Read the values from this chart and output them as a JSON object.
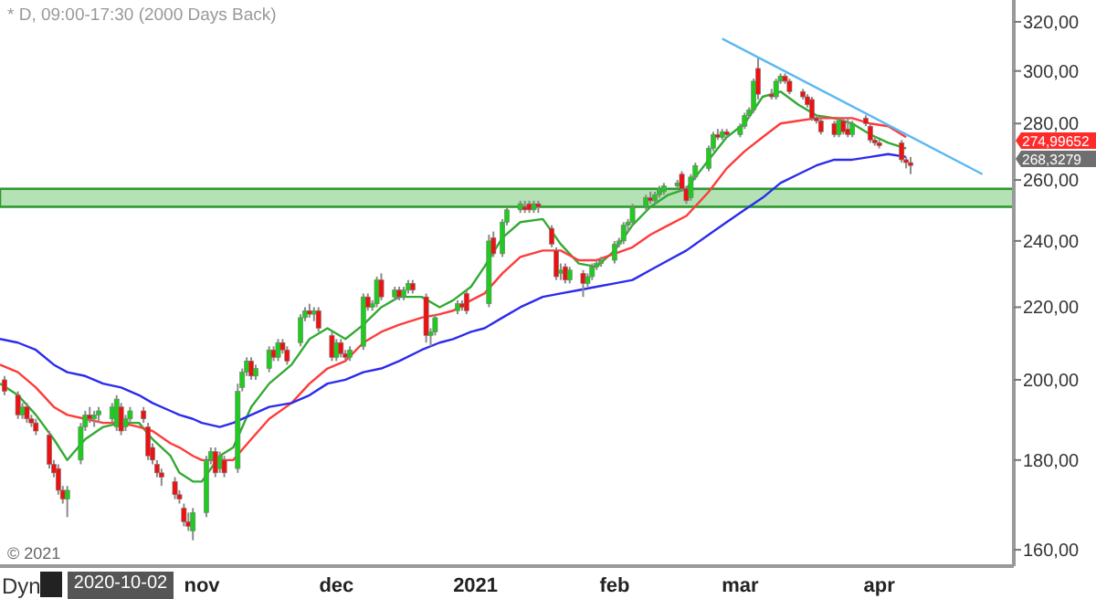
{
  "chart_data": {
    "type": "candlestick",
    "title": "* D, 09:00-17:30 (2000 Days Back)",
    "x": [
      "2020-09-18",
      "2020-09-21",
      "2020-09-22",
      "2020-09-23",
      "2020-09-24",
      "2020-09-25",
      "2020-09-28",
      "2020-09-29",
      "2020-09-30",
      "2020-10-01",
      "2020-10-02",
      "2020-10-05",
      "2020-10-06",
      "2020-10-07",
      "2020-10-08",
      "2020-10-09",
      "2020-10-12",
      "2020-10-13",
      "2020-10-14",
      "2020-10-15",
      "2020-10-16",
      "2020-10-19",
      "2020-10-20",
      "2020-10-21",
      "2020-10-22",
      "2020-10-23",
      "2020-10-26",
      "2020-10-27",
      "2020-10-28",
      "2020-10-29",
      "2020-10-30",
      "2020-11-02",
      "2020-11-03",
      "2020-11-04",
      "2020-11-05",
      "2020-11-06",
      "2020-11-09",
      "2020-11-10",
      "2020-11-11",
      "2020-11-12",
      "2020-11-13",
      "2020-11-16",
      "2020-11-17",
      "2020-11-18",
      "2020-11-19",
      "2020-11-20",
      "2020-11-23",
      "2020-11-24",
      "2020-11-25",
      "2020-11-26",
      "2020-11-27",
      "2020-11-30",
      "2020-12-01",
      "2020-12-02",
      "2020-12-03",
      "2020-12-04",
      "2020-12-07",
      "2020-12-08",
      "2020-12-09",
      "2020-12-10",
      "2020-12-11",
      "2020-12-14",
      "2020-12-15",
      "2020-12-16",
      "2020-12-17",
      "2020-12-18",
      "2020-12-21",
      "2020-12-22",
      "2020-12-23",
      "2020-12-28",
      "2020-12-29",
      "2020-12-30",
      "2021-01-04",
      "2021-01-05",
      "2021-01-07",
      "2021-01-08",
      "2021-01-11",
      "2021-01-12",
      "2021-01-13",
      "2021-01-14",
      "2021-01-15",
      "2021-01-18",
      "2021-01-19",
      "2021-01-20",
      "2021-01-21",
      "2021-01-22",
      "2021-01-25",
      "2021-01-26",
      "2021-01-27",
      "2021-01-28",
      "2021-01-29",
      "2021-02-01",
      "2021-02-02",
      "2021-02-03",
      "2021-02-04",
      "2021-02-05",
      "2021-02-08",
      "2021-02-09",
      "2021-02-10",
      "2021-02-11",
      "2021-02-12",
      "2021-02-15",
      "2021-02-16",
      "2021-02-17",
      "2021-02-18",
      "2021-02-19",
      "2021-02-22",
      "2021-02-23",
      "2021-02-24",
      "2021-02-25",
      "2021-02-26",
      "2021-03-01",
      "2021-03-02",
      "2021-03-03",
      "2021-03-04",
      "2021-03-05",
      "2021-03-08",
      "2021-03-09",
      "2021-03-10",
      "2021-03-11",
      "2021-03-12",
      "2021-03-15",
      "2021-03-16",
      "2021-03-17",
      "2021-03-18",
      "2021-03-19",
      "2021-03-22",
      "2021-03-23",
      "2021-03-24",
      "2021-03-25",
      "2021-03-26",
      "2021-03-29",
      "2021-03-30",
      "2021-03-31",
      "2021-04-01",
      "2021-04-06",
      "2021-04-07",
      "2021-04-08"
    ],
    "ohlc": [
      [
        200,
        201,
        196,
        197
      ],
      [
        196,
        197,
        190,
        191
      ],
      [
        191,
        194,
        190,
        193
      ],
      [
        193,
        194,
        189,
        190
      ],
      [
        190,
        191,
        188,
        189
      ],
      [
        189,
        190,
        186,
        187
      ],
      [
        186,
        187,
        178,
        179
      ],
      [
        179,
        180,
        176,
        177
      ],
      [
        178,
        179,
        172,
        173
      ],
      [
        173,
        174,
        170,
        171
      ],
      [
        171,
        174,
        167,
        173
      ],
      [
        180,
        189,
        179,
        188
      ],
      [
        188,
        192,
        187,
        191
      ],
      [
        191,
        193,
        189,
        190
      ],
      [
        190,
        192,
        188,
        191
      ],
      [
        191,
        193,
        189,
        192
      ],
      [
        190,
        194,
        189,
        193
      ],
      [
        188,
        196,
        187,
        195
      ],
      [
        193,
        194,
        186,
        187
      ],
      [
        188,
        191,
        187,
        190
      ],
      [
        190,
        193,
        189,
        192
      ],
      [
        192,
        193,
        189,
        190
      ],
      [
        188,
        189,
        180,
        181
      ],
      [
        183,
        184,
        179,
        180
      ],
      [
        179,
        180,
        176,
        177
      ],
      [
        177,
        178,
        174,
        176
      ],
      [
        175,
        176,
        171,
        172
      ],
      [
        172,
        173,
        170,
        171
      ],
      [
        169,
        170,
        165,
        166
      ],
      [
        166,
        168,
        164,
        165
      ],
      [
        164,
        169,
        162,
        168
      ],
      [
        168,
        181,
        167,
        180
      ],
      [
        180,
        183,
        179,
        182
      ],
      [
        182,
        183,
        176,
        177
      ],
      [
        178,
        182,
        177,
        181
      ],
      [
        180,
        181,
        176,
        177
      ],
      [
        178,
        199,
        177,
        197
      ],
      [
        198,
        203,
        197,
        202
      ],
      [
        202,
        206,
        201,
        205
      ],
      [
        205,
        206,
        200,
        201
      ],
      [
        201,
        204,
        200,
        203
      ],
      [
        203,
        209,
        202,
        208
      ],
      [
        208,
        209,
        205,
        206
      ],
      [
        206,
        211,
        205,
        210
      ],
      [
        210,
        211,
        207,
        208
      ],
      [
        208,
        209,
        204,
        205
      ],
      [
        210,
        218,
        209,
        217
      ],
      [
        217,
        220,
        216,
        219
      ],
      [
        219,
        221,
        217,
        218
      ],
      [
        218,
        220,
        216,
        219
      ],
      [
        219,
        220,
        213,
        214
      ],
      [
        212,
        213,
        205,
        206
      ],
      [
        206,
        211,
        205,
        210
      ],
      [
        210,
        211,
        206,
        207
      ],
      [
        207,
        208,
        205,
        206
      ],
      [
        206,
        209,
        205,
        208
      ],
      [
        209,
        224,
        208,
        223
      ],
      [
        223,
        224,
        219,
        220
      ],
      [
        220,
        222,
        219,
        221
      ],
      [
        221,
        229,
        220,
        228
      ],
      [
        228,
        230,
        222,
        223
      ],
      [
        223,
        226,
        222,
        225
      ],
      [
        225,
        226,
        222,
        223
      ],
      [
        223,
        226,
        222,
        225
      ],
      [
        225,
        228,
        224,
        227
      ],
      [
        227,
        228,
        224,
        225
      ],
      [
        223,
        224,
        210,
        212
      ],
      [
        212,
        214,
        209,
        213
      ],
      [
        213,
        218,
        212,
        217
      ],
      [
        219,
        222,
        218,
        221
      ],
      [
        221,
        222,
        219,
        220
      ],
      [
        224,
        225,
        218,
        219
      ],
      [
        221,
        242,
        220,
        240
      ],
      [
        241,
        243,
        235,
        236
      ],
      [
        236,
        247,
        235,
        246
      ],
      [
        246,
        251,
        245,
        250
      ],
      [
        250,
        253,
        249,
        252
      ],
      [
        251,
        253,
        249,
        250
      ],
      [
        252,
        253,
        249,
        250
      ],
      [
        250,
        253,
        249,
        252
      ],
      [
        252,
        253,
        249,
        251
      ],
      [
        244,
        245,
        238,
        239
      ],
      [
        237,
        238,
        228,
        229
      ],
      [
        230,
        233,
        228,
        231
      ],
      [
        232,
        233,
        227,
        228
      ],
      [
        228,
        232,
        227,
        231
      ],
      [
        230,
        231,
        223,
        227
      ],
      [
        227,
        230,
        226,
        229
      ],
      [
        229,
        233,
        228,
        232
      ],
      [
        232,
        234,
        231,
        233
      ],
      [
        233,
        235,
        232,
        234
      ],
      [
        234,
        240,
        233,
        239
      ],
      [
        239,
        241,
        238,
        240
      ],
      [
        240,
        246,
        239,
        245
      ],
      [
        245,
        247,
        243,
        246
      ],
      [
        246,
        252,
        245,
        251
      ],
      [
        251,
        255,
        250,
        254
      ],
      [
        254,
        256,
        252,
        253
      ],
      [
        253,
        256,
        252,
        255
      ],
      [
        255,
        258,
        254,
        257
      ],
      [
        256,
        259,
        255,
        258
      ],
      [
        258,
        260,
        257,
        259
      ],
      [
        262,
        263,
        256,
        257
      ],
      [
        257,
        258,
        252,
        253
      ],
      [
        254,
        262,
        253,
        261
      ],
      [
        261,
        266,
        260,
        265
      ],
      [
        264,
        272,
        263,
        271
      ],
      [
        271,
        277,
        270,
        276
      ],
      [
        276,
        278,
        274,
        275
      ],
      [
        275,
        278,
        274,
        277
      ],
      [
        277,
        278,
        275,
        276
      ],
      [
        276,
        280,
        275,
        279
      ],
      [
        279,
        284,
        278,
        283
      ],
      [
        283,
        286,
        282,
        285
      ],
      [
        285,
        297,
        284,
        296
      ],
      [
        301,
        305,
        289,
        291
      ],
      [
        291,
        293,
        289,
        290
      ],
      [
        290,
        297,
        289,
        296
      ],
      [
        296,
        299,
        295,
        298
      ],
      [
        298,
        299,
        295,
        296
      ],
      [
        296,
        297,
        291,
        292
      ],
      [
        292,
        293,
        289,
        290
      ],
      [
        290,
        291,
        286,
        287
      ],
      [
        289,
        290,
        281,
        282
      ],
      [
        282,
        283,
        280,
        281
      ],
      [
        281,
        282,
        276,
        277
      ],
      [
        280,
        281,
        275,
        276
      ],
      [
        276,
        282,
        275,
        281
      ],
      [
        281,
        282,
        276,
        277
      ],
      [
        278,
        282,
        275,
        276
      ],
      [
        276,
        281,
        275,
        280
      ],
      [
        282,
        283,
        279,
        280
      ],
      [
        279,
        280,
        273,
        274
      ],
      [
        274,
        275,
        272,
        273
      ],
      [
        273,
        274,
        271,
        272
      ],
      [
        273,
        274,
        266,
        267
      ],
      [
        267,
        268,
        264,
        266
      ],
      [
        266,
        268,
        262,
        265
      ]
    ],
    "series": [
      {
        "type": "line",
        "color": "#33aa33",
        "x": [
          "2020-09-17",
          "2020-09-21",
          "2020-09-25",
          "2020-09-29",
          "2020-10-02",
          "2020-10-06",
          "2020-10-10",
          "2020-10-14",
          "2020-10-18",
          "2020-10-21",
          "2020-10-25",
          "2020-10-27",
          "2020-10-30",
          "2020-11-01",
          "2020-11-05",
          "2020-11-08",
          "2020-11-12",
          "2020-11-16",
          "2020-11-21",
          "2020-11-25",
          "2020-11-29",
          "2020-12-03",
          "2020-12-07",
          "2020-12-11",
          "2020-12-15",
          "2020-12-20",
          "2020-12-24",
          "2020-12-27",
          "2020-12-31",
          "2021-01-03",
          "2021-01-07",
          "2021-01-11",
          "2021-01-16",
          "2021-01-20",
          "2021-01-24",
          "2021-01-28",
          "2021-02-01",
          "2021-02-05",
          "2021-02-09",
          "2021-02-13",
          "2021-02-17",
          "2021-02-22",
          "2021-02-26",
          "2021-03-02",
          "2021-03-06",
          "2021-03-10",
          "2021-03-14",
          "2021-03-18",
          "2021-03-22",
          "2021-03-26",
          "2021-03-30",
          "2021-04-03",
          "2021-04-07"
        ],
        "values": [
          199,
          196,
          191,
          185,
          180,
          185,
          188,
          189,
          189,
          185,
          181,
          177,
          175,
          175,
          181,
          183,
          193,
          199,
          204,
          211,
          214,
          211,
          215,
          220,
          223,
          223,
          220,
          222,
          226,
          232,
          241,
          246,
          247,
          239,
          233,
          232,
          237,
          245,
          251,
          255,
          257,
          267,
          275,
          280,
          290,
          292,
          287,
          283,
          282,
          280,
          276,
          273,
          271
        ]
      },
      {
        "type": "line",
        "color": "#ff3b3b",
        "x": [
          "2020-09-17",
          "2020-09-21",
          "2020-09-25",
          "2020-09-29",
          "2020-10-02",
          "2020-10-06",
          "2020-10-10",
          "2020-10-14",
          "2020-10-18",
          "2020-10-21",
          "2020-10-25",
          "2020-10-27",
          "2020-10-30",
          "2020-11-01",
          "2020-11-05",
          "2020-11-08",
          "2020-11-12",
          "2020-11-16",
          "2020-11-21",
          "2020-11-25",
          "2020-11-29",
          "2020-12-03",
          "2020-12-07",
          "2020-12-11",
          "2020-12-15",
          "2020-12-20",
          "2020-12-24",
          "2020-12-27",
          "2020-12-31",
          "2021-01-03",
          "2021-01-07",
          "2021-01-11",
          "2021-01-16",
          "2021-01-20",
          "2021-01-24",
          "2021-01-28",
          "2021-02-01",
          "2021-02-05",
          "2021-02-09",
          "2021-02-13",
          "2021-02-17",
          "2021-02-22",
          "2021-02-26",
          "2021-03-02",
          "2021-03-06",
          "2021-03-10",
          "2021-03-14",
          "2021-03-18",
          "2021-03-22",
          "2021-03-26",
          "2021-03-30",
          "2021-04-03",
          "2021-04-07"
        ],
        "values": [
          204,
          202,
          198,
          193,
          191,
          190,
          189,
          189,
          188,
          187,
          184,
          183,
          181,
          180,
          180,
          180,
          185,
          190,
          194,
          199,
          203,
          205,
          210,
          213,
          215,
          217,
          218,
          219,
          222,
          224,
          230,
          235,
          237,
          237,
          234,
          234,
          236,
          238,
          242,
          245,
          248,
          256,
          264,
          270,
          275,
          280,
          281,
          282,
          282,
          282,
          280,
          279,
          275
        ]
      },
      {
        "type": "line",
        "color": "#2b2bee",
        "x": [
          "2020-09-17",
          "2020-09-21",
          "2020-09-25",
          "2020-09-29",
          "2020-10-02",
          "2020-10-06",
          "2020-10-10",
          "2020-10-14",
          "2020-10-18",
          "2020-10-21",
          "2020-10-25",
          "2020-10-27",
          "2020-10-30",
          "2020-11-01",
          "2020-11-05",
          "2020-11-08",
          "2020-11-12",
          "2020-11-16",
          "2020-11-21",
          "2020-11-25",
          "2020-11-29",
          "2020-12-03",
          "2020-12-07",
          "2020-12-11",
          "2020-12-15",
          "2020-12-20",
          "2020-12-24",
          "2020-12-27",
          "2020-12-31",
          "2021-01-03",
          "2021-01-07",
          "2021-01-11",
          "2021-01-16",
          "2021-01-20",
          "2021-01-24",
          "2021-01-28",
          "2021-02-01",
          "2021-02-05",
          "2021-02-09",
          "2021-02-13",
          "2021-02-17",
          "2021-02-22",
          "2021-02-26",
          "2021-03-02",
          "2021-03-06",
          "2021-03-10",
          "2021-03-14",
          "2021-03-18",
          "2021-03-22",
          "2021-03-26",
          "2021-03-30",
          "2021-04-03",
          "2021-04-07"
        ],
        "values": [
          211,
          210,
          208,
          204,
          202,
          201,
          199,
          198,
          196,
          194,
          192,
          191,
          190,
          189,
          188,
          189,
          191,
          193,
          194,
          196,
          199,
          200,
          202,
          203,
          205,
          208,
          210,
          211,
          213,
          214,
          217,
          220,
          223,
          224,
          225,
          226,
          227,
          228,
          231,
          234,
          237,
          242,
          246,
          250,
          254,
          259,
          262,
          265,
          267,
          267,
          268,
          269,
          268
        ]
      },
      {
        "type": "line",
        "color": "#5cb8f2",
        "x": [
          "2021-02-25",
          "2021-04-24"
        ],
        "values": [
          313,
          262
        ]
      }
    ],
    "bands": [
      {
        "axis": "y",
        "from": 251,
        "to": 257,
        "color": "#b4e2b4"
      }
    ],
    "annotations": [
      "© 2021",
      "Dyn",
      "2020-10-02",
      "274,99652",
      "268,3279"
    ],
    "log": true,
    "xlim": [
      "2020-09-17",
      "2021-05-01"
    ],
    "xticks": [
      {
        "value": "2020-11-01",
        "label": "nov"
      },
      {
        "value": "2020-12-01",
        "label": "dec"
      },
      {
        "value": "2021-01-01",
        "label": "2021"
      },
      {
        "value": "2021-02-01",
        "label": "feb"
      },
      {
        "value": "2021-03-01",
        "label": "mar"
      },
      {
        "value": "2021-04-01",
        "label": "apr"
      }
    ],
    "ylim": [
      156.6,
      329.3
    ],
    "yticks": [
      {
        "value": 160,
        "label": "160,00"
      },
      {
        "value": 180,
        "label": "180,00"
      },
      {
        "value": 200,
        "label": "200,00"
      },
      {
        "value": 220,
        "label": "220,00"
      },
      {
        "value": 240,
        "label": "240,00"
      },
      {
        "value": 260,
        "label": "260,00"
      },
      {
        "value": 280,
        "label": "280,00"
      },
      {
        "value": 300,
        "label": "300,00"
      },
      {
        "value": 320,
        "label": "320,00"
      }
    ]
  }
}
